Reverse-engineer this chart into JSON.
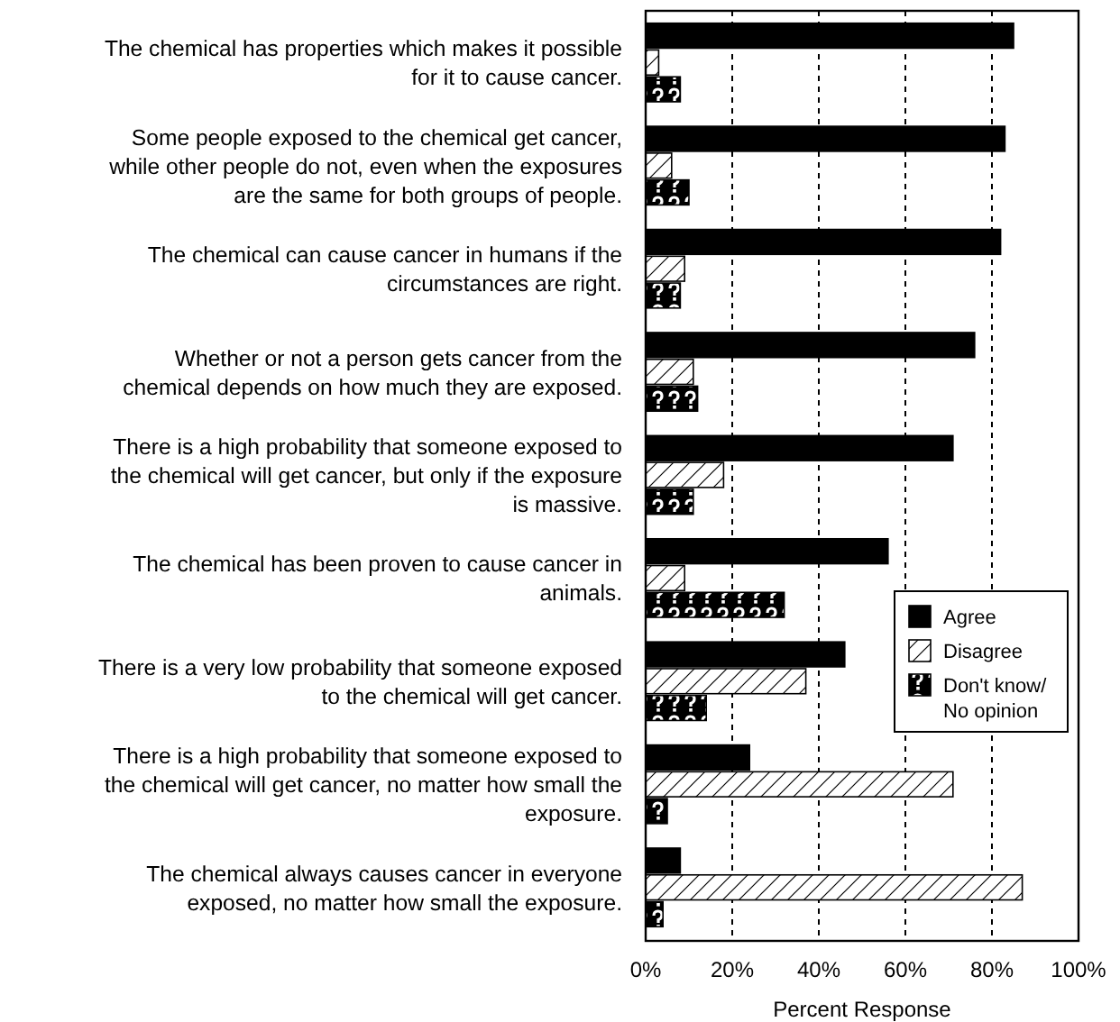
{
  "chart_data": {
    "type": "bar",
    "orientation": "horizontal",
    "xlabel": "Percent Response",
    "categories": [
      "The chemical has properties which makes it possible for it to cause cancer.",
      "Some people exposed to the chemical get cancer, while other people do not, even when the exposures are the same for both groups of people.",
      "The chemical can cause cancer in humans if the circumstances are right.",
      "Whether or not a person gets cancer from the chemical depends on how much they are exposed.",
      "There is a high probability that someone exposed to the chemical will get cancer, but only if the exposure is massive.",
      "The chemical has been proven to cause cancer in animals.",
      "There is a very low probability that someone exposed to the chemical will get cancer.",
      "There is a high probability that someone exposed to the chemical will get cancer, no matter how small the exposure.",
      "The chemical always causes cancer in everyone exposed, no matter how small the exposure."
    ],
    "series": [
      {
        "name": "Agree",
        "color": "#000000",
        "values": [
          85,
          83,
          82,
          76,
          71,
          56,
          46,
          24,
          8
        ]
      },
      {
        "name": "Disagree",
        "color": "#000000",
        "values": [
          3,
          6,
          9,
          11,
          18,
          9,
          37,
          71,
          87
        ]
      },
      {
        "name": "Don't know/ No opinion",
        "color": "#000000",
        "values": [
          8,
          10,
          8,
          12,
          11,
          32,
          14,
          5,
          4
        ]
      }
    ],
    "xlim": [
      0,
      100
    ],
    "xticks": [
      {
        "value": 0,
        "label": "0%"
      },
      {
        "value": 20,
        "label": "20%"
      },
      {
        "value": 40,
        "label": "40%"
      },
      {
        "value": 60,
        "label": "60%"
      },
      {
        "value": 80,
        "label": "80%"
      },
      {
        "value": 100,
        "label": "100%"
      }
    ],
    "grid": "x",
    "legend": "right"
  }
}
